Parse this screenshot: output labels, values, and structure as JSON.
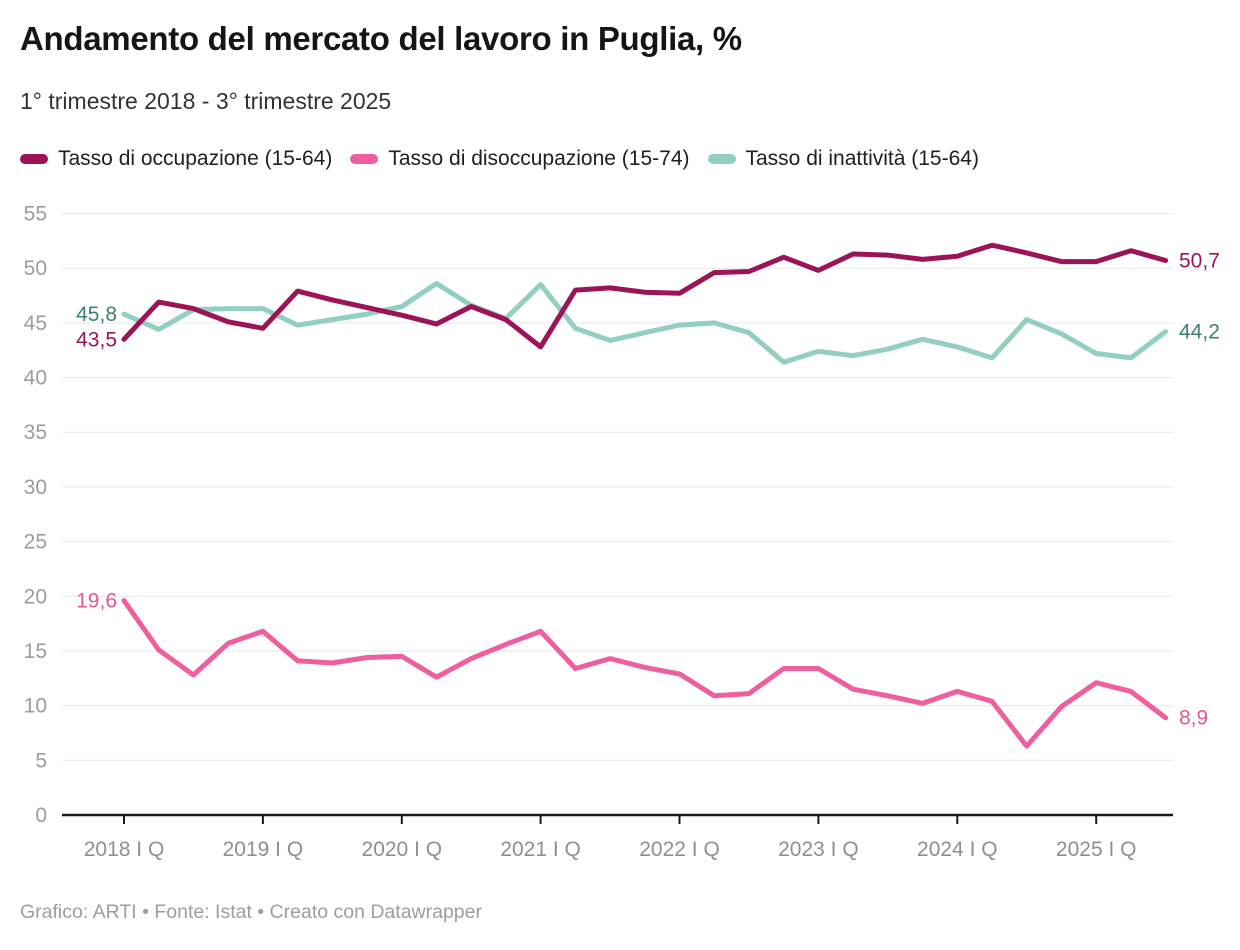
{
  "header": {
    "title": "Andamento del mercato del lavoro in Puglia, %",
    "subtitle": "1° trimestre 2018 - 3° trimestre 2025"
  },
  "footer": {
    "credits": "Grafico: ARTI • Fonte: Istat • Creato con Datawrapper"
  },
  "chart_data": {
    "type": "line",
    "title": "Andamento del mercato del lavoro in Puglia, %",
    "subtitle": "1° trimestre 2018 - 3° trimestre 2025",
    "grid": true,
    "legend_position": "top",
    "ylim": [
      0,
      55
    ],
    "yticks": [
      0,
      5,
      10,
      15,
      20,
      25,
      30,
      35,
      40,
      45,
      50,
      55
    ],
    "x": [
      "2018 Q1",
      "2018 Q2",
      "2018 Q3",
      "2018 Q4",
      "2019 Q1",
      "2019 Q2",
      "2019 Q3",
      "2019 Q4",
      "2020 Q1",
      "2020 Q2",
      "2020 Q3",
      "2020 Q4",
      "2021 Q1",
      "2021 Q2",
      "2021 Q3",
      "2021 Q4",
      "2022 Q1",
      "2022 Q2",
      "2022 Q3",
      "2022 Q4",
      "2023 Q1",
      "2023 Q2",
      "2023 Q3",
      "2023 Q4",
      "2024 Q1",
      "2024 Q2",
      "2024 Q3",
      "2024 Q4",
      "2025 Q1",
      "2025 Q2",
      "2025 Q3"
    ],
    "x_tick_labels": [
      {
        "index": 0,
        "label": "2018 I Q"
      },
      {
        "index": 4,
        "label": "2019 I Q"
      },
      {
        "index": 8,
        "label": "2020 I Q"
      },
      {
        "index": 12,
        "label": "2021 I Q"
      },
      {
        "index": 16,
        "label": "2022 I Q"
      },
      {
        "index": 20,
        "label": "2023 I Q"
      },
      {
        "index": 24,
        "label": "2024 I Q"
      },
      {
        "index": 28,
        "label": "2025 I Q"
      }
    ],
    "series": [
      {
        "id": "occupazione",
        "name": "Tasso di occupazione (15-64)",
        "color": "#9c1457",
        "label_color": "#9c1457",
        "start_label": "43,5",
        "end_label": "50,7",
        "values": [
          43.5,
          46.9,
          46.3,
          45.1,
          44.5,
          47.9,
          47.1,
          46.4,
          45.7,
          44.9,
          46.5,
          45.3,
          42.8,
          48.0,
          48.2,
          47.8,
          47.7,
          49.6,
          49.7,
          51.0,
          49.8,
          51.3,
          51.2,
          50.8,
          51.1,
          52.1,
          51.4,
          50.6,
          50.6,
          51.6,
          50.7
        ]
      },
      {
        "id": "disoccupazione",
        "name": "Tasso di disoccupazione (15-74)",
        "color": "#ef5f9e",
        "label_color": "#e1569a",
        "start_label": "19,6",
        "end_label": "8,9",
        "values": [
          19.6,
          15.1,
          12.8,
          15.7,
          16.8,
          14.1,
          13.9,
          14.4,
          14.5,
          12.6,
          14.3,
          15.6,
          16.8,
          13.4,
          14.3,
          13.5,
          12.9,
          10.9,
          11.1,
          13.4,
          13.4,
          11.5,
          10.9,
          10.2,
          11.3,
          10.4,
          6.3,
          9.9,
          12.1,
          11.3,
          8.9
        ]
      },
      {
        "id": "inattivita",
        "name": "Tasso di inattività (15-64)",
        "color": "#93cec3",
        "label_color": "#3f7e78",
        "start_label": "45,8",
        "end_label": "44,2",
        "values": [
          45.8,
          44.4,
          46.2,
          46.3,
          46.3,
          44.8,
          45.3,
          45.8,
          46.5,
          48.6,
          46.6,
          45.4,
          48.5,
          44.5,
          43.4,
          44.1,
          44.8,
          45.0,
          44.1,
          41.4,
          42.4,
          42.0,
          42.6,
          43.5,
          42.8,
          41.8,
          45.3,
          44.0,
          42.2,
          41.8,
          44.2
        ]
      }
    ]
  }
}
